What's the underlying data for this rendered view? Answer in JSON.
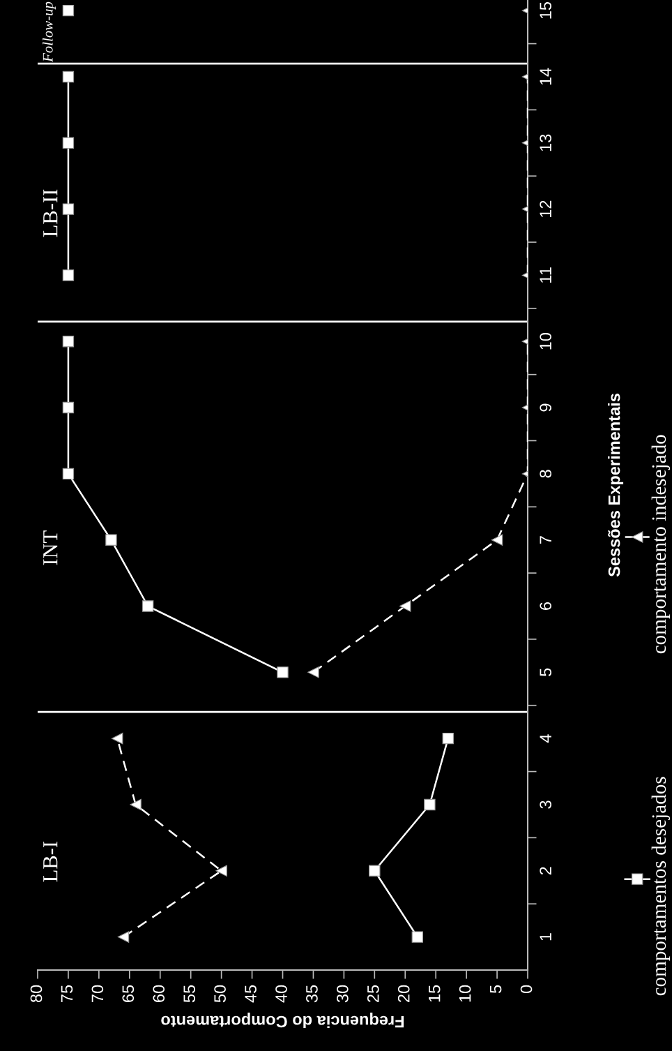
{
  "chart_data": {
    "type": "line",
    "xlabel": "Frequencia do Comportamento",
    "ylabel": "Sessões Experimentais",
    "series": [
      {
        "name": "comportamentos desejados",
        "color": "#ffffff",
        "marker": "square",
        "line_style": "solid",
        "x": [
          18,
          25,
          16,
          13,
          null,
          40,
          62,
          68,
          75,
          75,
          75,
          null,
          75,
          75,
          75,
          75,
          null,
          75
        ],
        "values": [
          1,
          2,
          3,
          4,
          null,
          5,
          6,
          7,
          8,
          9,
          10,
          null,
          11,
          12,
          13,
          14,
          null,
          15
        ]
      },
      {
        "name": "comportamento indesejado",
        "color": "#ffffff",
        "marker": "triangle",
        "line_style": "dashed",
        "x": [
          66,
          50,
          64,
          67,
          null,
          35,
          20,
          5,
          0,
          0,
          0,
          null,
          0,
          0,
          0,
          0,
          null,
          0
        ],
        "values": [
          1,
          2,
          3,
          4,
          null,
          5,
          6,
          7,
          8,
          9,
          10,
          null,
          11,
          12,
          13,
          14,
          null,
          15
        ]
      }
    ],
    "xlim": [
      80,
      0
    ],
    "xticks": [
      0,
      5,
      10,
      15,
      20,
      25,
      30,
      35,
      40,
      45,
      50,
      55,
      60,
      65,
      70,
      75,
      80
    ],
    "ylim": [
      0.5,
      15.16
    ],
    "yticks": [
      1,
      2,
      3,
      4,
      5,
      6,
      7,
      8,
      9,
      10,
      11,
      12,
      13,
      14,
      15
    ],
    "ref_lines": [
      {
        "axis": "y",
        "value": 4.4,
        "color": "#ffffff"
      },
      {
        "axis": "y",
        "value": 10.3,
        "color": "#ffffff"
      },
      {
        "axis": "y",
        "value": 14.2,
        "color": "#ffffff"
      }
    ],
    "annotations": [
      "LB-I",
      "INT",
      "LB-II",
      "Follow-up"
    ],
    "grid": false,
    "legend": "right"
  }
}
